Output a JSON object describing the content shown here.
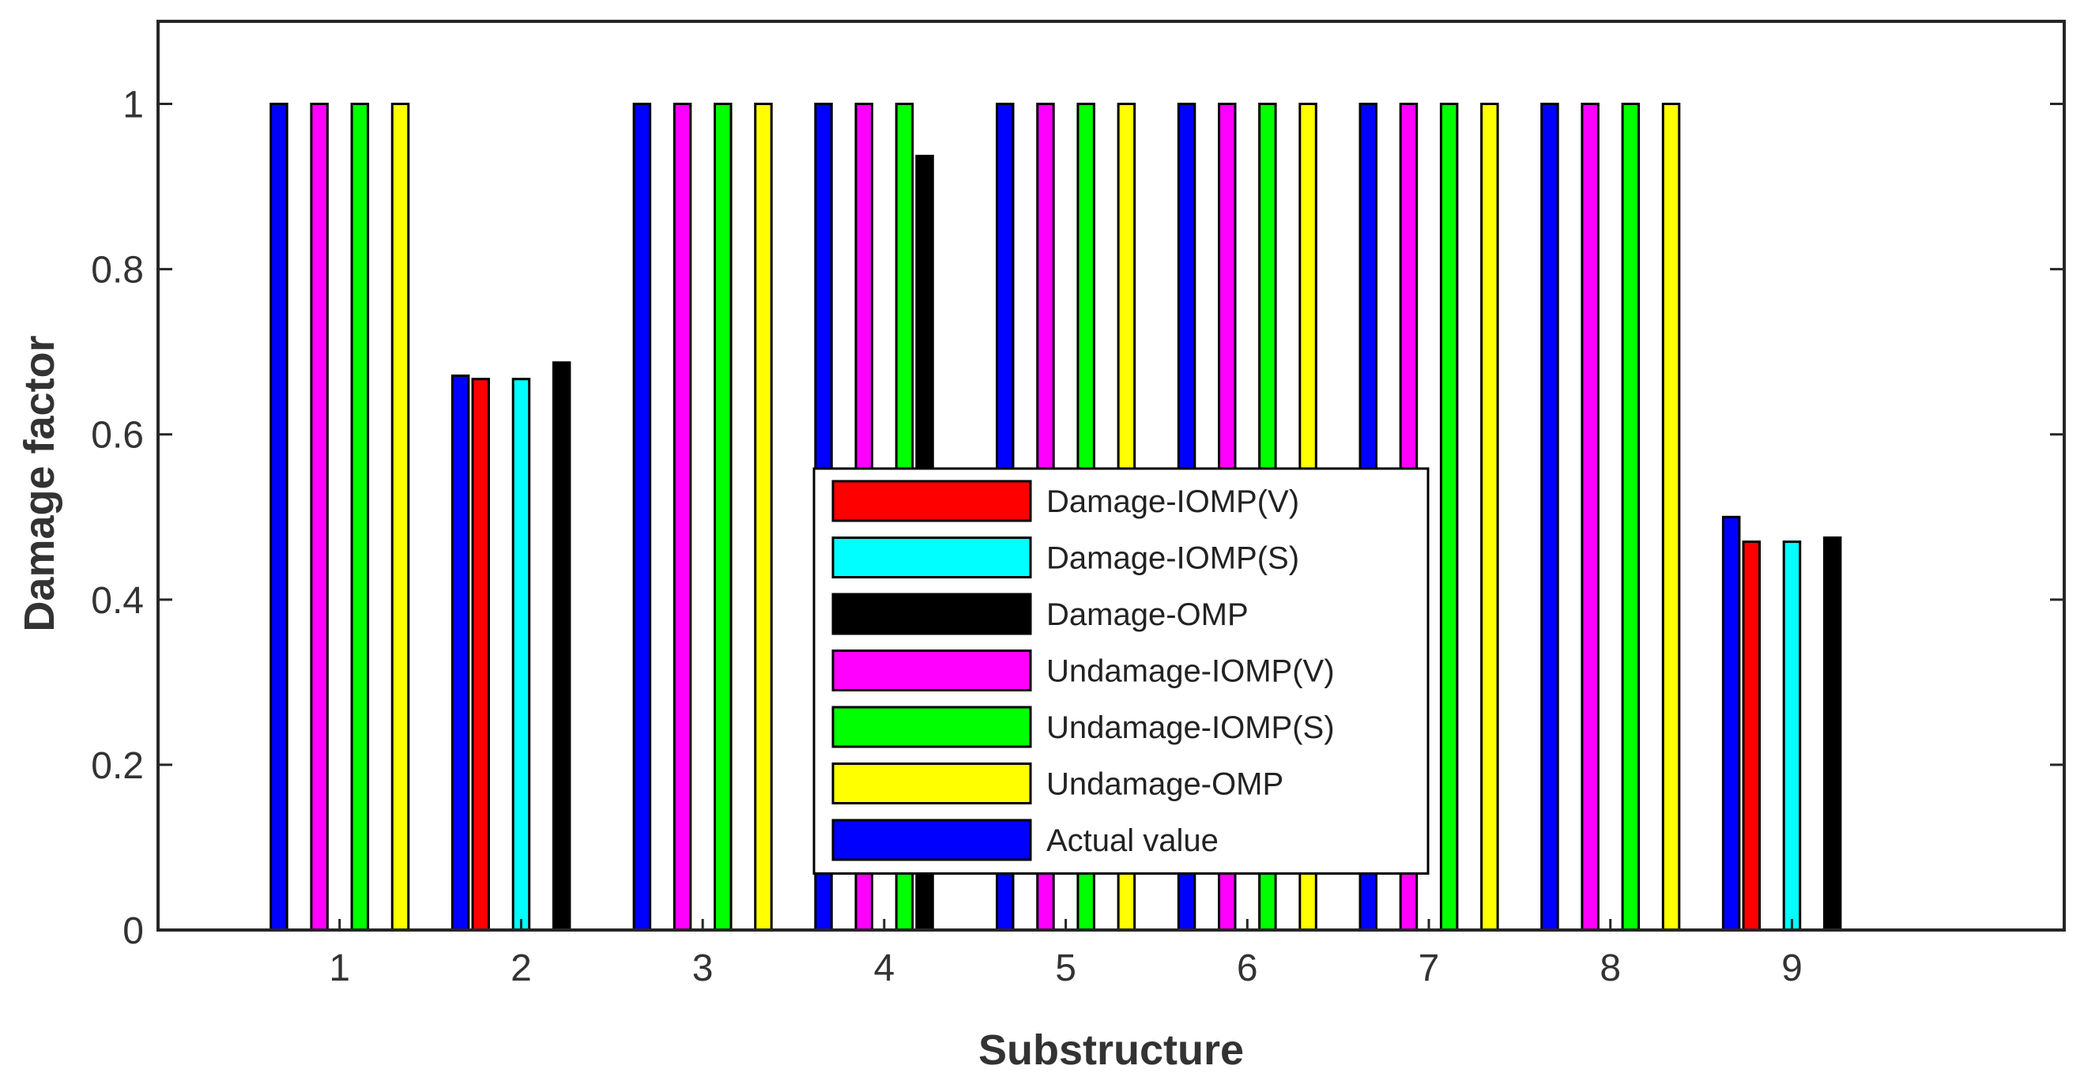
{
  "chart_data": {
    "type": "bar",
    "title": "",
    "xlabel": "Substructure",
    "ylabel": "Damage factor",
    "categories": [
      "1",
      "2",
      "3",
      "4",
      "5",
      "6",
      "7",
      "8",
      "9"
    ],
    "ylim": [
      0,
      1.1
    ],
    "yticks": [
      0,
      0.2,
      0.4,
      0.6,
      0.8,
      1
    ],
    "ytick_labels": [
      "0",
      "0.2",
      "0.4",
      "0.6",
      "0.8",
      "1"
    ],
    "legend_location": "center",
    "series": [
      {
        "name": "Actual value",
        "color": "#0000ff",
        "values": [
          1,
          0.671,
          1,
          1,
          1,
          1,
          1,
          1,
          0.5
        ]
      },
      {
        "name": "Damage-IOMP(V)",
        "color": "#ff0000",
        "values": [
          0,
          0.667,
          0,
          0,
          0,
          0,
          0,
          0,
          0.47
        ]
      },
      {
        "name": "Undamage-IOMP(V)",
        "color": "#ff00ff",
        "values": [
          1,
          0,
          1,
          1,
          1,
          1,
          1,
          1,
          0
        ]
      },
      {
        "name": "Damage-IOMP(S)",
        "color": "#00ffff",
        "values": [
          0,
          0.667,
          0,
          0,
          0,
          0,
          0,
          0,
          0.47
        ]
      },
      {
        "name": "Undamage-IOMP(S)",
        "color": "#00ff00",
        "values": [
          1,
          0,
          1,
          1,
          1,
          1,
          1,
          1,
          0
        ]
      },
      {
        "name": "Damage-OMP",
        "color": "#000000",
        "values": [
          0,
          0.687,
          0,
          0.937,
          0,
          0,
          0,
          0,
          0.475
        ]
      },
      {
        "name": "Undamage-OMP",
        "color": "#ffff00",
        "values": [
          1,
          0,
          1,
          0,
          1,
          1,
          1,
          1,
          0
        ]
      }
    ],
    "legend_order": [
      "Damage-IOMP(V)",
      "Damage-IOMP(S)",
      "Damage-OMP",
      "Undamage-IOMP(V)",
      "Undamage-IOMP(S)",
      "Undamage-OMP",
      "Actual value"
    ]
  }
}
